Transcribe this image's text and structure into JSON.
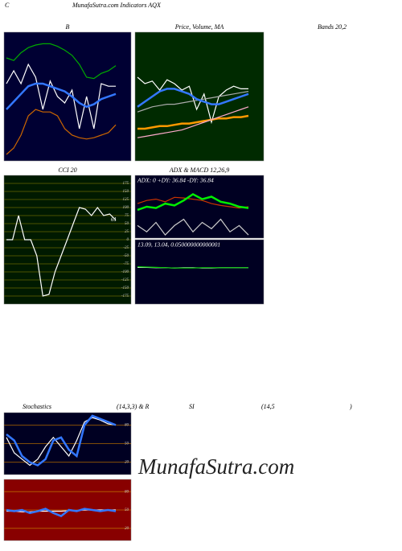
{
  "header": {
    "symbol": "C",
    "site": "MunafaSutra.com Indicators AQX",
    "bands": "Bands 20,2",
    "stoch": [
      "Stochastics",
      "(14,3,3) & R",
      "SI",
      "(14,5",
      ")"
    ]
  },
  "watermark": "MunafaSutra.com",
  "chart_data": [
    {
      "type": "line",
      "title": "B",
      "background": "#000033",
      "ylim": [
        0,
        100
      ],
      "series": [
        {
          "color": "#00aa00",
          "values": [
            80,
            78,
            84,
            88,
            90,
            91,
            91,
            89,
            86,
            82,
            75,
            65,
            64,
            68,
            70,
            74
          ]
        },
        {
          "color": "#ffffff",
          "values": [
            60,
            70,
            60,
            75,
            65,
            40,
            62,
            50,
            45,
            55,
            25,
            50,
            25,
            60,
            58,
            58
          ]
        },
        {
          "color": "#3377ff",
          "values": [
            40,
            46,
            52,
            58,
            60,
            60,
            58,
            56,
            54,
            50,
            45,
            42,
            44,
            48,
            50,
            52
          ]
        },
        {
          "color": "#cc6600",
          "values": [
            5,
            10,
            20,
            35,
            40,
            38,
            38,
            35,
            25,
            20,
            18,
            17,
            18,
            20,
            22,
            28
          ]
        }
      ]
    },
    {
      "type": "line",
      "title": "Price, Volume, MA",
      "background": "#002a00",
      "ylim": [
        0,
        100
      ],
      "series": [
        {
          "color": "#ffffff",
          "values": [
            65,
            60,
            62,
            55,
            63,
            60,
            55,
            58,
            40,
            52,
            30,
            50,
            55,
            58,
            56,
            56
          ]
        },
        {
          "color": "#aaaaaa",
          "values": [
            38,
            40,
            42,
            43,
            44,
            44,
            45,
            46,
            47,
            48,
            49,
            50,
            51,
            52,
            53,
            54
          ]
        },
        {
          "color": "#3377ff",
          "values": [
            42,
            46,
            50,
            54,
            56,
            56,
            54,
            52,
            48,
            46,
            44,
            44,
            46,
            48,
            50,
            52
          ]
        },
        {
          "color": "#ff9900",
          "values": [
            25,
            25,
            26,
            27,
            27,
            28,
            29,
            29,
            30,
            31,
            32,
            33,
            33,
            34,
            34,
            35
          ]
        },
        {
          "color": "#ffaacc",
          "values": [
            18,
            19,
            20,
            21,
            22,
            23,
            24,
            26,
            28,
            30,
            32,
            34,
            36,
            38,
            40,
            42
          ]
        }
      ]
    },
    {
      "type": "line",
      "title": "CCI 20",
      "background": "#001a00",
      "ylim": [
        -200,
        200
      ],
      "grid_color": "#666600",
      "yticks": [
        175,
        150,
        125,
        100,
        75,
        50,
        25,
        0,
        -25,
        -50,
        -75,
        -100,
        -125,
        -150,
        -175
      ],
      "series": [
        {
          "color": "#ffffff",
          "values": [
            0,
            0,
            75,
            0,
            0,
            -50,
            -175,
            -170,
            -100,
            -50,
            0,
            50,
            100,
            95,
            75,
            100,
            75,
            80,
            61
          ]
        }
      ]
    },
    {
      "type": "line",
      "title": "ADX & MACD 12,26,9",
      "annotation": "ADX: 0 +DY: 36.84 -DY: 36.84",
      "background": "#000022",
      "ylim": [
        0,
        100
      ],
      "series": [
        {
          "color": "#cc3300",
          "values": [
            55,
            60,
            62,
            58,
            65,
            64,
            62,
            60,
            55,
            52,
            50,
            48,
            50
          ]
        },
        {
          "color": "#00ee00",
          "values": [
            45,
            50,
            48,
            55,
            52,
            60,
            70,
            62,
            66,
            58,
            55,
            50,
            48
          ]
        },
        {
          "color": "#cccccc",
          "values": [
            20,
            10,
            25,
            5,
            20,
            30,
            10,
            25,
            15,
            30,
            10,
            20,
            5
          ]
        }
      ]
    },
    {
      "type": "line",
      "annotation": "13.09, 13.04, 0.050000000000001",
      "background": "#000022",
      "ylim": [
        -100,
        100
      ],
      "series": [
        {
          "color": "#ffffff",
          "values": [
            14,
            14,
            13,
            13,
            12,
            13,
            13,
            12,
            12,
            13,
            13,
            13,
            13
          ]
        },
        {
          "color": "#00cc00",
          "values": [
            16,
            15,
            14,
            13,
            12,
            12,
            12,
            13,
            13,
            13,
            13,
            13,
            13
          ]
        }
      ]
    },
    {
      "type": "line",
      "background": "#000022",
      "ylim": [
        0,
        100
      ],
      "yticks": [
        20,
        50,
        80
      ],
      "grid_color": "#aa6600",
      "series": [
        {
          "color": "#ffffff",
          "values": [
            60,
            35,
            25,
            15,
            25,
            45,
            60,
            45,
            30,
            55,
            85,
            92,
            88,
            82,
            80
          ]
        },
        {
          "color": "#3377ff",
          "values": [
            65,
            55,
            30,
            20,
            15,
            25,
            55,
            60,
            40,
            30,
            80,
            95,
            90,
            85,
            80
          ]
        }
      ]
    },
    {
      "type": "line",
      "background": "#880000",
      "ylim": [
        0,
        100
      ],
      "yticks": [
        20,
        50,
        80
      ],
      "grid_color": "#bb6600",
      "series": [
        {
          "color": "#ffffff",
          "values": [
            48,
            48,
            47,
            47,
            48,
            48,
            48,
            48,
            49,
            49,
            50,
            50,
            50,
            50,
            50
          ]
        },
        {
          "color": "#3377ff",
          "values": [
            50,
            48,
            50,
            45,
            48,
            52,
            45,
            40,
            50,
            48,
            52,
            50,
            48,
            50,
            48
          ]
        }
      ]
    }
  ]
}
